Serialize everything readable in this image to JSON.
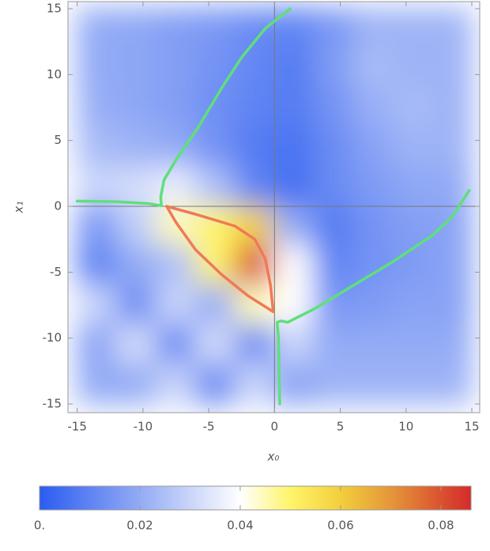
{
  "chart_data": {
    "type": "density",
    "xlabel": "x₀",
    "ylabel": "x₁",
    "xlim": [
      -15.7,
      15.6
    ],
    "ylim": [
      -15.66,
      15.54
    ],
    "xticks": [
      -15,
      -10,
      -5,
      0,
      5,
      10,
      15
    ],
    "yticks": [
      -15,
      -10,
      -5,
      0,
      5,
      10,
      15
    ],
    "grid_x": [
      -13.5,
      -10.5,
      -7.5,
      -4.5,
      -1.5,
      1.5,
      4.5,
      7.5,
      10.5,
      13.5
    ],
    "grid_y": [
      13.5,
      10.5,
      7.5,
      4.5,
      1.5,
      -1.5,
      -4.5,
      -7.5,
      -10.5,
      -13.5
    ],
    "z": [
      [
        0.02,
        0.019,
        0.017,
        0.015,
        0.012,
        0.01,
        0.015,
        0.022,
        0.022,
        0.022
      ],
      [
        0.02,
        0.019,
        0.017,
        0.014,
        0.011,
        0.008,
        0.016,
        0.024,
        0.022,
        0.022
      ],
      [
        0.021,
        0.019,
        0.017,
        0.013,
        0.01,
        0.008,
        0.014,
        0.021,
        0.024,
        0.022
      ],
      [
        0.024,
        0.022,
        0.02,
        0.014,
        0.008,
        0.006,
        0.012,
        0.018,
        0.022,
        0.022
      ],
      [
        0.03,
        0.032,
        0.036,
        0.025,
        0.01,
        0.005,
        0.012,
        0.016,
        0.019,
        0.02
      ],
      [
        0.015,
        0.028,
        0.045,
        0.05,
        0.06,
        0.02,
        0.008,
        0.014,
        0.017,
        0.018
      ],
      [
        0.01,
        0.02,
        0.025,
        0.05,
        0.08,
        0.04,
        0.01,
        0.014,
        0.016,
        0.018
      ],
      [
        0.03,
        0.012,
        0.03,
        0.02,
        0.045,
        0.04,
        0.015,
        0.016,
        0.018,
        0.018
      ],
      [
        0.018,
        0.032,
        0.012,
        0.032,
        0.012,
        0.03,
        0.02,
        0.02,
        0.02,
        0.02
      ],
      [
        0.02,
        0.02,
        0.03,
        0.012,
        0.03,
        0.018,
        0.022,
        0.022,
        0.022,
        0.022
      ]
    ],
    "clim": [
      0,
      0.086
    ],
    "cticks": [
      {
        "value": 0,
        "label": "0."
      },
      0.02,
      0.04,
      0.06,
      0.08
    ],
    "colorscale": [
      [
        0,
        "#2a5cf0"
      ],
      [
        0.02,
        "#93abf5"
      ],
      [
        0.04,
        "#ffffff"
      ],
      [
        0.05,
        "#fff46a"
      ],
      [
        0.06,
        "#f2cf3c"
      ],
      [
        0.07,
        "#e5963a"
      ],
      [
        0.086,
        "#d42a2a"
      ]
    ],
    "series": [
      {
        "color": "#5ee07a",
        "x": [
          -15,
          -12,
          -9.5,
          -8.6
        ],
        "y": [
          0.4,
          0.35,
          0.2,
          0.05
        ]
      },
      {
        "color": "#5ee07a",
        "x": [
          -8.6,
          -8.65,
          -8.4,
          -7.5,
          -5.8,
          -4,
          -2.5,
          -0.7,
          0.3,
          1.2
        ],
        "y": [
          0.05,
          0.7,
          2,
          3.5,
          6,
          9,
          11.3,
          13.5,
          14.3,
          15
        ]
      },
      {
        "color": "#5ee07a",
        "x": [
          0.4,
          0.3,
          0.2,
          0.5,
          1,
          3,
          6,
          9,
          12,
          13.5,
          14.8
        ],
        "y": [
          -15,
          -10,
          -8.8,
          -8.7,
          -8.8,
          -7.8,
          -6,
          -4.2,
          -2.2,
          -0.8,
          1.2
        ]
      },
      {
        "color": "#f07a55",
        "x": [
          -8.2,
          -6,
          -3,
          -1.5,
          -0.7,
          -0.3,
          -0.1,
          -2,
          -4,
          -6,
          -7.5,
          -8.2
        ],
        "y": [
          0,
          -0.6,
          -1.5,
          -2.5,
          -4,
          -6,
          -8,
          -6.8,
          -5.2,
          -3.3,
          -1.2,
          0
        ]
      }
    ]
  }
}
